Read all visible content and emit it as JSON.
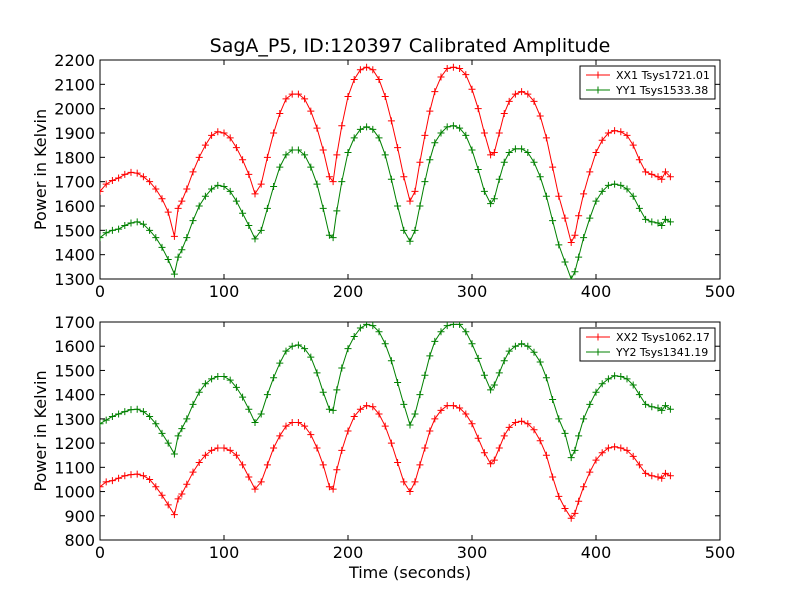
{
  "figure": {
    "title": "SagA_P5, ID:120397 Calibrated Amplitude"
  },
  "chart_data": [
    {
      "type": "line",
      "title": "SagA_P5, ID:120397 Calibrated Amplitude",
      "xlabel": "",
      "ylabel": "Power in Kelvin",
      "xlim": [
        0,
        500
      ],
      "ylim": [
        1300,
        2200
      ],
      "xticks": [
        0,
        100,
        200,
        300,
        400,
        500
      ],
      "yticks": [
        1300,
        1400,
        1500,
        1600,
        1700,
        1800,
        1900,
        2000,
        2100,
        2200
      ],
      "legend": "top-right",
      "grid": false,
      "series": [
        {
          "name": "XX1 Tsys1721.01",
          "color": "#ff0000",
          "x": [
            0,
            5,
            10,
            15,
            20,
            25,
            30,
            35,
            40,
            45,
            50,
            55,
            60,
            63,
            66,
            70,
            75,
            80,
            85,
            90,
            95,
            100,
            105,
            110,
            115,
            120,
            125,
            130,
            135,
            140,
            145,
            150,
            155,
            160,
            165,
            170,
            175,
            180,
            185,
            188,
            191,
            195,
            200,
            205,
            210,
            215,
            220,
            225,
            230,
            235,
            240,
            245,
            250,
            254,
            258,
            262,
            266,
            270,
            275,
            280,
            285,
            290,
            295,
            300,
            305,
            310,
            315,
            318,
            322,
            326,
            330,
            335,
            340,
            345,
            350,
            355,
            360,
            365,
            370,
            375,
            380,
            383,
            386,
            390,
            395,
            400,
            405,
            410,
            415,
            420,
            425,
            430,
            435,
            440,
            445,
            450,
            453,
            456,
            460
          ],
          "y": [
            1660,
            1690,
            1705,
            1715,
            1730,
            1738,
            1735,
            1720,
            1700,
            1670,
            1630,
            1575,
            1475,
            1590,
            1620,
            1670,
            1740,
            1800,
            1850,
            1890,
            1905,
            1900,
            1880,
            1840,
            1790,
            1730,
            1650,
            1690,
            1800,
            1900,
            1980,
            2040,
            2060,
            2060,
            2040,
            1990,
            1920,
            1830,
            1720,
            1700,
            1810,
            1930,
            2050,
            2120,
            2160,
            2170,
            2160,
            2120,
            2050,
            1950,
            1840,
            1720,
            1620,
            1660,
            1780,
            1890,
            1990,
            2070,
            2130,
            2165,
            2170,
            2165,
            2140,
            2080,
            2000,
            1900,
            1810,
            1820,
            1900,
            1980,
            2030,
            2060,
            2070,
            2060,
            2030,
            1970,
            1880,
            1760,
            1640,
            1550,
            1450,
            1480,
            1560,
            1650,
            1740,
            1820,
            1870,
            1900,
            1910,
            1905,
            1890,
            1850,
            1790,
            1740,
            1730,
            1720,
            1710,
            1740,
            1720
          ]
        },
        {
          "name": "YY1 Tsys1533.38",
          "color": "#008000",
          "x": [
            0,
            5,
            10,
            15,
            20,
            25,
            30,
            35,
            40,
            45,
            50,
            55,
            60,
            63,
            66,
            70,
            75,
            80,
            85,
            90,
            95,
            100,
            105,
            110,
            115,
            120,
            125,
            130,
            135,
            140,
            145,
            150,
            155,
            160,
            165,
            170,
            175,
            180,
            185,
            188,
            191,
            195,
            200,
            205,
            210,
            215,
            220,
            225,
            230,
            235,
            240,
            245,
            250,
            254,
            258,
            262,
            266,
            270,
            275,
            280,
            285,
            290,
            295,
            300,
            305,
            310,
            315,
            318,
            322,
            326,
            330,
            335,
            340,
            345,
            350,
            355,
            360,
            365,
            370,
            375,
            380,
            383,
            386,
            390,
            395,
            400,
            405,
            410,
            415,
            420,
            425,
            430,
            435,
            440,
            445,
            450,
            453,
            456,
            460
          ],
          "y": [
            1470,
            1490,
            1500,
            1505,
            1520,
            1530,
            1535,
            1525,
            1500,
            1470,
            1430,
            1380,
            1320,
            1390,
            1420,
            1470,
            1540,
            1600,
            1640,
            1670,
            1685,
            1680,
            1660,
            1620,
            1570,
            1520,
            1465,
            1500,
            1590,
            1680,
            1760,
            1810,
            1830,
            1830,
            1810,
            1760,
            1690,
            1590,
            1480,
            1470,
            1580,
            1700,
            1820,
            1880,
            1915,
            1925,
            1915,
            1880,
            1810,
            1710,
            1600,
            1500,
            1455,
            1500,
            1600,
            1700,
            1790,
            1860,
            1900,
            1925,
            1930,
            1920,
            1890,
            1830,
            1750,
            1660,
            1610,
            1630,
            1710,
            1780,
            1820,
            1835,
            1835,
            1820,
            1780,
            1720,
            1640,
            1540,
            1440,
            1370,
            1300,
            1330,
            1390,
            1470,
            1550,
            1620,
            1660,
            1685,
            1690,
            1685,
            1670,
            1640,
            1590,
            1545,
            1535,
            1530,
            1520,
            1545,
            1535
          ]
        }
      ]
    },
    {
      "type": "line",
      "title": "",
      "xlabel": "Time (seconds)",
      "ylabel": "Power in Kelvin",
      "xlim": [
        0,
        500
      ],
      "ylim": [
        800,
        1700
      ],
      "xticks": [
        0,
        100,
        200,
        300,
        400,
        500
      ],
      "yticks": [
        800,
        900,
        1000,
        1100,
        1200,
        1300,
        1400,
        1500,
        1600,
        1700
      ],
      "legend": "top-right",
      "grid": false,
      "series": [
        {
          "name": "XX2 Tsys1062.17",
          "color": "#ff0000",
          "x": [
            0,
            5,
            10,
            15,
            20,
            25,
            30,
            35,
            40,
            45,
            50,
            55,
            60,
            63,
            66,
            70,
            75,
            80,
            85,
            90,
            95,
            100,
            105,
            110,
            115,
            120,
            125,
            130,
            135,
            140,
            145,
            150,
            155,
            160,
            165,
            170,
            175,
            180,
            185,
            188,
            191,
            195,
            200,
            205,
            210,
            215,
            220,
            225,
            230,
            235,
            240,
            245,
            250,
            254,
            258,
            262,
            266,
            270,
            275,
            280,
            285,
            290,
            295,
            300,
            305,
            310,
            315,
            318,
            322,
            326,
            330,
            335,
            340,
            345,
            350,
            355,
            360,
            365,
            370,
            375,
            380,
            383,
            386,
            390,
            395,
            400,
            405,
            410,
            415,
            420,
            425,
            430,
            435,
            440,
            445,
            450,
            453,
            456,
            460
          ],
          "y": [
            1020,
            1040,
            1045,
            1055,
            1065,
            1070,
            1072,
            1065,
            1050,
            1020,
            985,
            945,
            905,
            970,
            990,
            1030,
            1080,
            1120,
            1150,
            1170,
            1180,
            1180,
            1170,
            1150,
            1110,
            1060,
            1010,
            1040,
            1110,
            1180,
            1230,
            1270,
            1285,
            1285,
            1270,
            1235,
            1180,
            1110,
            1020,
            1010,
            1090,
            1170,
            1250,
            1310,
            1340,
            1355,
            1350,
            1320,
            1270,
            1200,
            1120,
            1040,
            1000,
            1040,
            1110,
            1180,
            1250,
            1300,
            1335,
            1355,
            1355,
            1345,
            1320,
            1280,
            1220,
            1160,
            1115,
            1130,
            1180,
            1230,
            1265,
            1285,
            1290,
            1280,
            1255,
            1210,
            1150,
            1060,
            980,
            930,
            890,
            910,
            960,
            1020,
            1080,
            1130,
            1160,
            1180,
            1185,
            1180,
            1170,
            1145,
            1110,
            1075,
            1065,
            1060,
            1055,
            1075,
            1065
          ]
        },
        {
          "name": "YY2 Tsys1341.19",
          "color": "#008000",
          "x": [
            0,
            5,
            10,
            15,
            20,
            25,
            30,
            35,
            40,
            45,
            50,
            55,
            60,
            63,
            66,
            70,
            75,
            80,
            85,
            90,
            95,
            100,
            105,
            110,
            115,
            120,
            125,
            130,
            135,
            140,
            145,
            150,
            155,
            160,
            165,
            170,
            175,
            180,
            185,
            188,
            191,
            195,
            200,
            205,
            210,
            215,
            220,
            225,
            230,
            235,
            240,
            245,
            250,
            254,
            258,
            262,
            266,
            270,
            275,
            280,
            285,
            290,
            295,
            300,
            305,
            310,
            315,
            318,
            322,
            326,
            330,
            335,
            340,
            345,
            350,
            355,
            360,
            365,
            370,
            375,
            380,
            383,
            386,
            390,
            395,
            400,
            405,
            410,
            415,
            420,
            425,
            430,
            435,
            440,
            445,
            450,
            453,
            456,
            460
          ],
          "y": [
            1280,
            1295,
            1310,
            1320,
            1330,
            1338,
            1340,
            1330,
            1310,
            1280,
            1240,
            1200,
            1155,
            1230,
            1260,
            1300,
            1360,
            1410,
            1445,
            1465,
            1475,
            1475,
            1460,
            1430,
            1390,
            1340,
            1285,
            1320,
            1400,
            1470,
            1530,
            1580,
            1600,
            1605,
            1590,
            1555,
            1490,
            1410,
            1340,
            1335,
            1420,
            1510,
            1590,
            1640,
            1675,
            1690,
            1685,
            1660,
            1610,
            1540,
            1450,
            1360,
            1275,
            1320,
            1400,
            1480,
            1560,
            1620,
            1660,
            1685,
            1690,
            1690,
            1660,
            1610,
            1550,
            1480,
            1420,
            1440,
            1490,
            1540,
            1580,
            1600,
            1610,
            1600,
            1575,
            1535,
            1470,
            1380,
            1300,
            1240,
            1140,
            1170,
            1230,
            1300,
            1360,
            1410,
            1445,
            1465,
            1478,
            1475,
            1465,
            1440,
            1400,
            1360,
            1350,
            1345,
            1335,
            1355,
            1340
          ]
        }
      ]
    }
  ]
}
